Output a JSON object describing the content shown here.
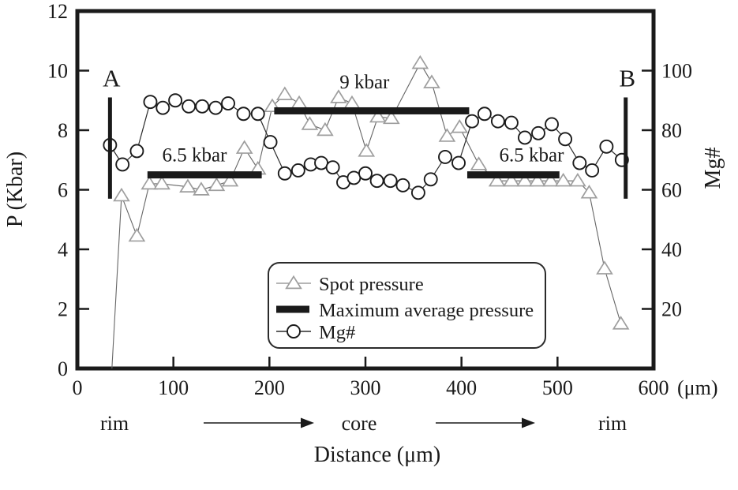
{
  "chart_data": {
    "type": "line",
    "xlabel": "Distance (μm)",
    "x_unit_suffix": "(μm)",
    "ylabel_left": "P (Kbar)",
    "ylabel_right": "Mg#",
    "x_range": [
      0,
      600
    ],
    "x_ticks": [
      0,
      100,
      200,
      300,
      400,
      500,
      600
    ],
    "y_left_range": [
      0,
      12
    ],
    "y_left_ticks": [
      0,
      2,
      4,
      6,
      8,
      10,
      12
    ],
    "y_right_range": [
      0,
      120
    ],
    "y_right_ticks": [
      20,
      40,
      60,
      80,
      100
    ],
    "grid": false,
    "legend_position": "bottom-center-inside",
    "series": [
      {
        "name": "Spot pressure",
        "axis": "left",
        "marker": "triangle",
        "marker_skip_first": true,
        "points": [
          [
            36,
            0
          ],
          [
            46,
            5.8
          ],
          [
            62,
            4.45
          ],
          [
            75,
            6.2
          ],
          [
            88,
            6.2
          ],
          [
            115,
            6.1
          ],
          [
            129,
            6.0
          ],
          [
            145,
            6.15
          ],
          [
            159,
            6.3
          ],
          [
            174,
            7.4
          ],
          [
            188,
            6.7
          ],
          [
            203,
            8.8
          ],
          [
            216,
            9.2
          ],
          [
            231,
            8.9
          ],
          [
            242,
            8.2
          ],
          [
            258,
            8.0
          ],
          [
            272,
            9.1
          ],
          [
            286,
            8.9
          ],
          [
            301,
            7.3
          ],
          [
            313,
            8.45
          ],
          [
            327,
            8.4
          ],
          [
            357,
            10.25
          ],
          [
            369,
            9.6
          ],
          [
            385,
            7.8
          ],
          [
            398,
            8.1
          ],
          [
            418,
            6.85
          ],
          [
            437,
            6.3
          ],
          [
            452,
            6.3
          ],
          [
            466,
            6.3
          ],
          [
            479,
            6.3
          ],
          [
            493,
            6.3
          ],
          [
            506,
            6.3
          ],
          [
            521,
            6.3
          ],
          [
            533,
            5.9
          ],
          [
            549,
            3.35
          ],
          [
            566,
            1.5
          ]
        ]
      },
      {
        "name": "Mg#",
        "axis": "right",
        "marker": "circle",
        "marker_skip_first": false,
        "points": [
          [
            34,
            75
          ],
          [
            47,
            68.5
          ],
          [
            62,
            73
          ],
          [
            76,
            89.5
          ],
          [
            89,
            87.5
          ],
          [
            102,
            90
          ],
          [
            116,
            88
          ],
          [
            130,
            88
          ],
          [
            144,
            87.5
          ],
          [
            157,
            89
          ],
          [
            173,
            85.5
          ],
          [
            188,
            85.5
          ],
          [
            201,
            76
          ],
          [
            216,
            65.5
          ],
          [
            230,
            66.5
          ],
          [
            243,
            68.5
          ],
          [
            254,
            69
          ],
          [
            266,
            67.5
          ],
          [
            277,
            62.5
          ],
          [
            288,
            64
          ],
          [
            300,
            65.5
          ],
          [
            312,
            63
          ],
          [
            326,
            63
          ],
          [
            339,
            61.5
          ],
          [
            355,
            59
          ],
          [
            368,
            63.5
          ],
          [
            383,
            71
          ],
          [
            397,
            69
          ],
          [
            411,
            83
          ],
          [
            424,
            85.5
          ],
          [
            438,
            83
          ],
          [
            452,
            82.5
          ],
          [
            466,
            77.5
          ],
          [
            480,
            79
          ],
          [
            494,
            82
          ],
          [
            508,
            77
          ],
          [
            523,
            69
          ],
          [
            536,
            66.5
          ],
          [
            551,
            74.5
          ],
          [
            567,
            70
          ]
        ]
      }
    ],
    "pressure_bars": [
      {
        "label": "6.5 kbar",
        "x_start": 73,
        "x_end": 192,
        "pressure": 6.5,
        "label_x": 122,
        "label_p": 6.95
      },
      {
        "label": "9 kbar",
        "x_start": 205,
        "x_end": 408,
        "pressure": 8.65,
        "label_x": 299,
        "label_p": 9.4
      },
      {
        "label": "6.5 kbar",
        "x_start": 406,
        "x_end": 502,
        "pressure": 6.5,
        "label_x": 473,
        "label_p": 6.95
      }
    ],
    "transect_markers": [
      {
        "label": "A",
        "x": 34,
        "p_min": 5.7,
        "p_max": 9.1
      },
      {
        "label": "B",
        "x": 571,
        "p_min": 5.7,
        "p_max": 9.1
      }
    ],
    "zone_labels": {
      "left": "rim",
      "center": "core",
      "right": "rim"
    },
    "legend": {
      "items": [
        {
          "label": "Spot pressure",
          "marker": "triangle"
        },
        {
          "label": "Maximum average pressure",
          "marker": "bar"
        },
        {
          "label": "Mg#",
          "marker": "circle"
        }
      ]
    }
  },
  "colors": {
    "ink": "#1a1a1a",
    "spot_line": "#666666",
    "spot_marker_stroke": "#9e9e9e",
    "mg_line": "#2b2b2b",
    "mg_marker_stroke": "#1b1b1b",
    "marker_fill": "#ffffff",
    "background": "#ffffff"
  }
}
